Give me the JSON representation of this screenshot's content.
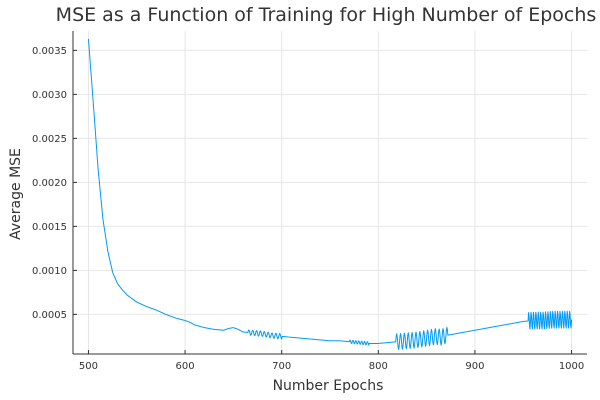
{
  "chart_data": {
    "type": "line",
    "title": "MSE as a Function of Training for High Number of Epochs",
    "xlabel": "Number Epochs",
    "ylabel": "Average MSE",
    "xlim": [
      484,
      1016
    ],
    "ylim": [
      5e-05,
      0.00372
    ],
    "xticks": [
      500,
      600,
      700,
      800,
      900,
      1000
    ],
    "xtick_labels": [
      "500",
      "600",
      "700",
      "800",
      "900",
      "1000"
    ],
    "yticks": [
      0.0005,
      0.001,
      0.0015,
      0.002,
      0.0025,
      0.003,
      0.0035
    ],
    "ytick_labels": [
      "0.0005",
      "0.0010",
      "0.0015",
      "0.0020",
      "0.0025",
      "0.0030",
      "0.0035"
    ],
    "grid": true,
    "legend": "none",
    "line_color": "#009af9",
    "series": [
      {
        "x": [
          500,
          505,
          510,
          515,
          520,
          525,
          530,
          535,
          540,
          545,
          550,
          560,
          570,
          580,
          590,
          600,
          605,
          610,
          620,
          630,
          640,
          645,
          650,
          655,
          660,
          670,
          680,
          690,
          700,
          710,
          720,
          730,
          740,
          750,
          760,
          770,
          780,
          790,
          800,
          810,
          820,
          830,
          840,
          850,
          860,
          865,
          870,
          875,
          880,
          890,
          900,
          910,
          920,
          930,
          940,
          950,
          960,
          970,
          980,
          990,
          1000
        ],
        "y": [
          0.00363,
          0.0029,
          0.00215,
          0.00158,
          0.00122,
          0.00098,
          0.00085,
          0.00078,
          0.00072,
          0.00068,
          0.00064,
          0.00059,
          0.00055,
          0.0005,
          0.00046,
          0.00043,
          0.00041,
          0.00038,
          0.00035,
          0.00033,
          0.00032,
          0.00034,
          0.00035,
          0.00033,
          0.0003,
          0.00029,
          0.00028,
          0.00026,
          0.00025,
          0.00024,
          0.00023,
          0.00022,
          0.00021,
          0.0002,
          0.0002,
          0.00019,
          0.00018,
          0.00017,
          0.00017,
          0.00018,
          0.00019,
          0.0002,
          0.00021,
          0.00023,
          0.00025,
          0.00024,
          0.00026,
          0.00027,
          0.00028,
          0.0003,
          0.00032,
          0.00034,
          0.00036,
          0.00038,
          0.0004,
          0.00042,
          0.00043,
          0.00043,
          0.00044,
          0.00044,
          0.00044
        ]
      }
    ],
    "oscillation_bands": [
      {
        "x_start": 665,
        "x_end": 700,
        "amplitude": 3e-05,
        "period": 4
      },
      {
        "x_start": 770,
        "x_end": 790,
        "amplitude": 2e-05,
        "period": 3
      },
      {
        "x_start": 818,
        "x_end": 872,
        "amplitude": 9e-05,
        "period": 4
      },
      {
        "x_start": 955,
        "x_end": 1000,
        "amplitude": 0.0001,
        "period": 2.5
      }
    ]
  }
}
